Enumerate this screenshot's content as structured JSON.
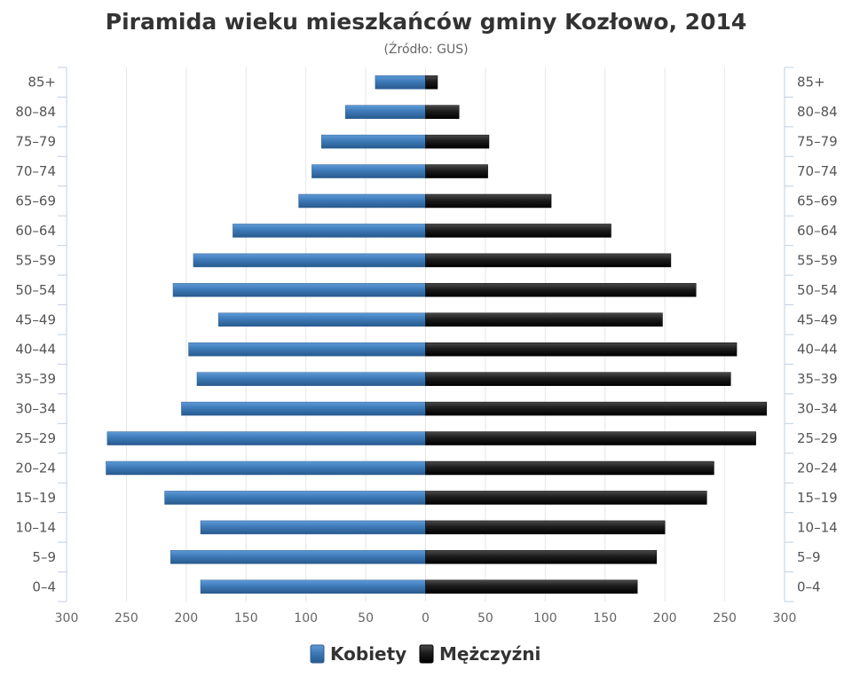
{
  "chart_data": {
    "type": "bar",
    "orientation": "horizontal-population-pyramid",
    "title": "Piramida wieku mieszkańców gminy Kozłowo, 2014",
    "subtitle": "(Źródło: GUS)",
    "categories": [
      "85+",
      "80–84",
      "75–79",
      "70–74",
      "65–69",
      "60–64",
      "55–59",
      "50–54",
      "45–49",
      "40–44",
      "35–39",
      "30–34",
      "25–29",
      "20–24",
      "15–19",
      "10–14",
      "5–9",
      "0–4"
    ],
    "series": [
      {
        "name": "Kobiety",
        "color": "#3d7ab8",
        "side": "left",
        "values": [
          42,
          67,
          87,
          95,
          106,
          161,
          194,
          211,
          173,
          198,
          191,
          204,
          266,
          267,
          218,
          188,
          213,
          188
        ]
      },
      {
        "name": "Mężczyźni",
        "color": "#1a1a1a",
        "side": "right",
        "values": [
          10,
          28,
          53,
          52,
          105,
          155,
          205,
          226,
          198,
          260,
          255,
          285,
          276,
          241,
          235,
          200,
          193,
          177
        ]
      }
    ],
    "x_ticks": [
      "300",
      "250",
      "200",
      "150",
      "100",
      "50",
      "0",
      "50",
      "100",
      "150",
      "200",
      "250",
      "300"
    ],
    "xlim": [
      -300,
      300
    ],
    "grid": true,
    "legend_position": "bottom-center"
  }
}
